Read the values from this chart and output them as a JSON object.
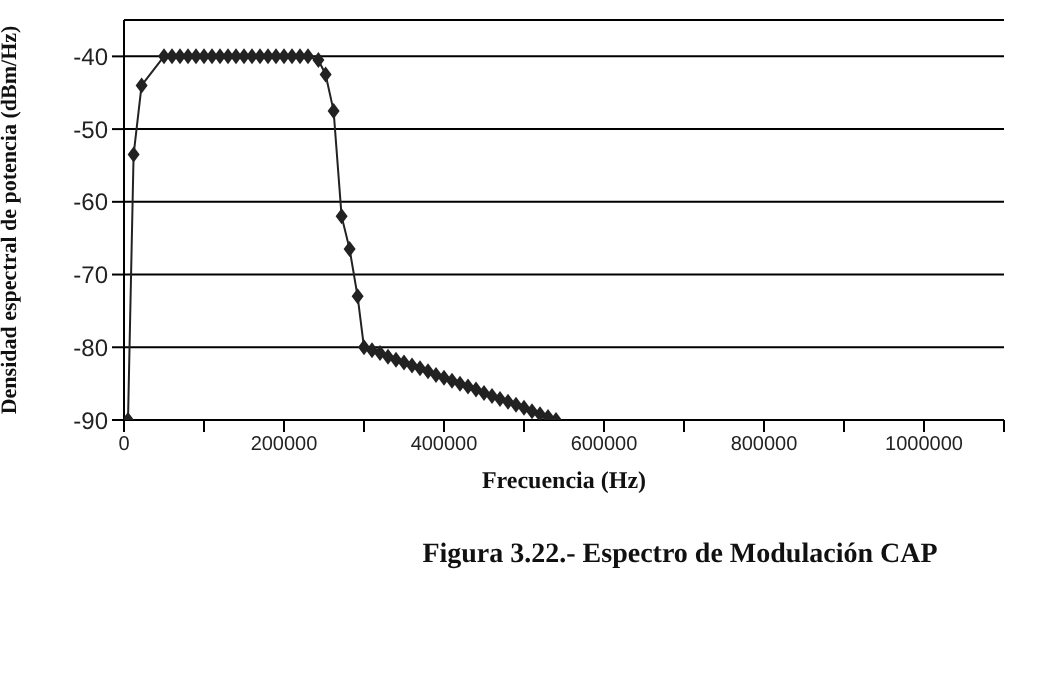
{
  "chart_data": {
    "type": "line",
    "xlabel": "Frecuencia (Hz)",
    "ylabel": "Densidad espectral de potencia (dBm/Hz)",
    "annotations": [
      "Figura 3.22.- Espectro de Modulación CAP"
    ],
    "xlim": [
      0,
      1100000
    ],
    "xticks": [
      0,
      {
        "value": 100000,
        "label": null
      },
      200000,
      {
        "value": 300000,
        "label": null
      },
      400000,
      {
        "value": 500000,
        "label": null
      },
      600000,
      {
        "value": 700000,
        "label": null
      },
      800000,
      {
        "value": 900000,
        "label": null
      },
      1000000,
      {
        "value": 1100000,
        "label": null
      }
    ],
    "ylim": [
      -90,
      -35
    ],
    "yticks": [
      -90,
      -80,
      -70,
      -60,
      -50,
      -40
    ],
    "grid": "y",
    "legend": false,
    "marker": "diamond",
    "line_style": "solid",
    "series": [
      {
        "color": "#222222",
        "x": [
          5000,
          12000,
          22000,
          50000,
          60000,
          70000,
          80000,
          90000,
          100000,
          110000,
          120000,
          130000,
          140000,
          150000,
          160000,
          170000,
          180000,
          190000,
          200000,
          210000,
          220000,
          230000,
          243000,
          252000,
          262000,
          272000,
          282000,
          292000,
          300000,
          310000,
          320000,
          330000,
          340000,
          350000,
          360000,
          370000,
          380000,
          390000,
          400000,
          410000,
          420000,
          430000,
          440000,
          450000,
          460000,
          470000,
          480000,
          490000,
          500000,
          510000,
          520000,
          530000,
          540000
        ],
        "values": [
          -90,
          -53.5,
          -44,
          -40,
          -40,
          -40,
          -40,
          -40,
          -40,
          -40,
          -40,
          -40,
          -40,
          -40,
          -40,
          -40,
          -40,
          -40,
          -40,
          -40,
          -40,
          -40,
          -40.5,
          -42.5,
          -47.5,
          -62,
          -66.5,
          -73,
          -80,
          -80.4,
          -80.8,
          -81.3,
          -81.7,
          -82.1,
          -82.5,
          -82.9,
          -83.3,
          -83.8,
          -84.2,
          -84.6,
          -85,
          -85.4,
          -85.8,
          -86.3,
          -86.7,
          -87.1,
          -87.5,
          -87.9,
          -88.3,
          -88.8,
          -89.2,
          -89.6,
          -90
        ]
      }
    ]
  }
}
